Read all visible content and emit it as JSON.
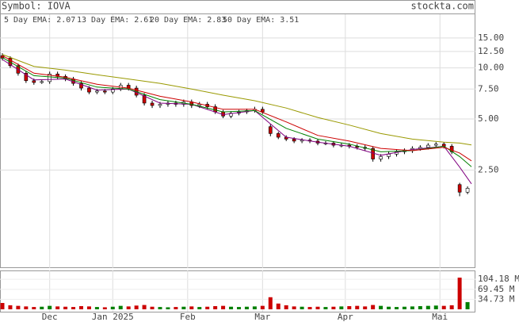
{
  "header": {
    "symbol": "Symbol: IOVA",
    "site": "stockta.com"
  },
  "chart_data": [
    {
      "type": "candlestick",
      "log_scale": true,
      "grid": true,
      "up_color": "#ffffff",
      "down_color": "#cc0000",
      "x": [
        0,
        2,
        4,
        6,
        8,
        10,
        12,
        14,
        16,
        18,
        20,
        22,
        24,
        26,
        28,
        30,
        32,
        34,
        36,
        38,
        40,
        42,
        44,
        46,
        48,
        50,
        52,
        54,
        56,
        58,
        60,
        62,
        64,
        66,
        68,
        70,
        72,
        74,
        76,
        78,
        80,
        82,
        84,
        86,
        88,
        90,
        92,
        94,
        96,
        98,
        100,
        102,
        104,
        106,
        108,
        110,
        112,
        114,
        116,
        118
      ],
      "open": [
        11.8,
        11.4,
        10.3,
        9.3,
        8.4,
        8.2,
        8.3,
        9.2,
        8.9,
        8.6,
        8.1,
        7.6,
        7.2,
        7.3,
        7.2,
        7.5,
        7.9,
        7.6,
        6.9,
        6.2,
        6.0,
        6.1,
        6.2,
        6.1,
        6.3,
        6.0,
        6.1,
        5.9,
        5.5,
        5.2,
        5.4,
        5.5,
        5.6,
        5.7,
        4.5,
        4.1,
        3.9,
        3.8,
        3.7,
        3.75,
        3.7,
        3.6,
        3.6,
        3.5,
        3.5,
        3.45,
        3.4,
        3.35,
        2.9,
        3.0,
        3.1,
        3.2,
        3.25,
        3.35,
        3.4,
        3.5,
        3.55,
        3.45,
        2.05,
        1.85
      ],
      "high": [
        12.2,
        11.7,
        10.6,
        9.6,
        8.65,
        8.55,
        9.5,
        9.5,
        9.15,
        8.85,
        8.35,
        7.8,
        7.5,
        7.5,
        7.7,
        8.15,
        8.15,
        7.85,
        7.1,
        6.4,
        6.3,
        6.4,
        6.4,
        6.5,
        6.5,
        6.3,
        6.3,
        6.1,
        5.65,
        5.55,
        5.65,
        5.75,
        5.9,
        5.9,
        4.65,
        4.2,
        4.0,
        3.9,
        3.85,
        3.85,
        3.8,
        3.7,
        3.7,
        3.6,
        3.6,
        3.55,
        3.5,
        3.45,
        3.1,
        3.2,
        3.3,
        3.35,
        3.45,
        3.5,
        3.6,
        3.65,
        3.65,
        3.55,
        2.1,
        2.0
      ],
      "low": [
        11.05,
        10.0,
        9.0,
        8.15,
        7.95,
        8.05,
        8.05,
        8.6,
        8.35,
        7.85,
        7.35,
        7.0,
        7.0,
        7.0,
        7.0,
        7.3,
        7.35,
        6.7,
        6.0,
        5.8,
        5.8,
        5.9,
        5.9,
        5.9,
        5.8,
        5.8,
        5.7,
        5.35,
        5.05,
        5.05,
        5.25,
        5.35,
        5.45,
        5.35,
        3.95,
        3.8,
        3.7,
        3.6,
        3.6,
        3.6,
        3.5,
        3.5,
        3.4,
        3.4,
        3.35,
        3.3,
        3.25,
        2.8,
        2.8,
        2.9,
        3.0,
        3.1,
        3.15,
        3.25,
        3.3,
        3.4,
        3.35,
        3.1,
        1.75,
        1.8
      ],
      "close": [
        11.4,
        10.3,
        9.3,
        8.4,
        8.2,
        8.3,
        9.2,
        8.9,
        8.6,
        8.1,
        7.6,
        7.2,
        7.3,
        7.2,
        7.5,
        7.9,
        7.6,
        6.9,
        6.2,
        6.0,
        6.1,
        6.2,
        6.1,
        6.3,
        6.0,
        6.1,
        5.9,
        5.5,
        5.2,
        5.4,
        5.5,
        5.6,
        5.7,
        5.5,
        4.1,
        3.9,
        3.8,
        3.7,
        3.75,
        3.7,
        3.6,
        3.6,
        3.5,
        3.5,
        3.45,
        3.4,
        3.35,
        2.9,
        3.0,
        3.1,
        3.2,
        3.25,
        3.35,
        3.4,
        3.5,
        3.55,
        3.45,
        3.2,
        1.85,
        1.95
      ],
      "xlim": [
        0,
        120
      ],
      "ylim": [
        0.66,
        20.7
      ],
      "yticks": [
        {
          "value": 15,
          "label": "15.00"
        },
        {
          "value": 12.5,
          "label": "12.50"
        },
        {
          "value": 10,
          "label": "10.00"
        },
        {
          "value": 7.5,
          "label": "7.50"
        },
        {
          "value": 5,
          "label": "5.00"
        },
        {
          "value": 2.5,
          "label": "2.50"
        }
      ],
      "series": [
        {
          "name": "5 Day EMA: 2.07",
          "color": "#800080",
          "x": [
            0,
            8,
            16,
            24,
            32,
            40,
            48,
            56,
            64,
            72,
            80,
            88,
            96,
            104,
            112,
            116,
            119
          ],
          "values": [
            11.2,
            8.5,
            8.6,
            7.4,
            7.5,
            6.2,
            6.1,
            5.3,
            5.6,
            3.9,
            3.65,
            3.45,
            3.05,
            3.3,
            3.45,
            2.6,
            2.07
          ]
        },
        {
          "name": "13 Day EMA: 2.61",
          "color": "#008000",
          "x": [
            0,
            8,
            16,
            24,
            32,
            40,
            48,
            56,
            64,
            72,
            80,
            88,
            96,
            104,
            112,
            116,
            119
          ],
          "values": [
            11.5,
            9.0,
            8.7,
            7.7,
            7.5,
            6.5,
            6.1,
            5.5,
            5.6,
            4.4,
            3.8,
            3.55,
            3.2,
            3.25,
            3.45,
            3.0,
            2.61
          ]
        },
        {
          "name": "20 Day EMA: 2.83",
          "color": "#cc0000",
          "x": [
            0,
            8,
            16,
            24,
            32,
            40,
            48,
            56,
            64,
            72,
            80,
            88,
            96,
            104,
            112,
            116,
            119
          ],
          "values": [
            11.8,
            9.3,
            8.8,
            8.0,
            7.6,
            6.8,
            6.3,
            5.7,
            5.7,
            4.8,
            4.0,
            3.7,
            3.35,
            3.25,
            3.4,
            3.15,
            2.83
          ]
        },
        {
          "name": "50 Day EMA: 3.51",
          "color": "#999900",
          "x": [
            0,
            8,
            16,
            24,
            32,
            40,
            48,
            56,
            64,
            72,
            80,
            88,
            96,
            104,
            112,
            116,
            119
          ],
          "values": [
            12.0,
            10.2,
            9.7,
            9.1,
            8.6,
            8.1,
            7.5,
            6.9,
            6.4,
            5.8,
            5.1,
            4.6,
            4.1,
            3.8,
            3.65,
            3.6,
            3.51
          ]
        }
      ]
    },
    {
      "type": "bar",
      "up_color": "#008000",
      "down_color": "#cc0000",
      "x": [
        0,
        2,
        4,
        6,
        8,
        10,
        12,
        14,
        16,
        18,
        20,
        22,
        24,
        26,
        28,
        30,
        32,
        34,
        36,
        38,
        40,
        42,
        44,
        46,
        48,
        50,
        52,
        54,
        56,
        58,
        60,
        62,
        64,
        66,
        68,
        70,
        72,
        74,
        76,
        78,
        80,
        82,
        84,
        86,
        88,
        90,
        92,
        94,
        96,
        98,
        100,
        102,
        104,
        106,
        108,
        110,
        112,
        114,
        116,
        118
      ],
      "values": [
        22,
        14,
        12,
        10,
        8,
        9,
        12,
        10,
        9,
        8,
        11,
        10,
        8,
        7,
        9,
        12,
        10,
        13,
        15,
        9,
        8,
        7,
        8,
        9,
        10,
        8,
        9,
        11,
        12,
        9,
        8,
        9,
        10,
        12,
        42,
        20,
        14,
        10,
        9,
        8,
        9,
        8,
        9,
        10,
        11,
        12,
        10,
        15,
        12,
        9,
        8,
        9,
        10,
        11,
        12,
        13,
        12,
        14,
        110,
        25
      ],
      "xlim": [
        0,
        120
      ],
      "ylim": [
        0,
        135
      ],
      "yticks": [
        {
          "value": 104.18,
          "label": "104.18 M"
        },
        {
          "value": 69.45,
          "label": "69.45 M"
        },
        {
          "value": 34.73,
          "label": "34.73 M"
        }
      ],
      "xticks": [
        {
          "value": 12,
          "label": "Dec"
        },
        {
          "value": 28,
          "label": "Jan 2025"
        },
        {
          "value": 47,
          "label": "Feb"
        },
        {
          "value": 66,
          "label": "Mar"
        },
        {
          "value": 87,
          "label": "Apr"
        },
        {
          "value": 111,
          "label": "Mai"
        }
      ]
    }
  ]
}
